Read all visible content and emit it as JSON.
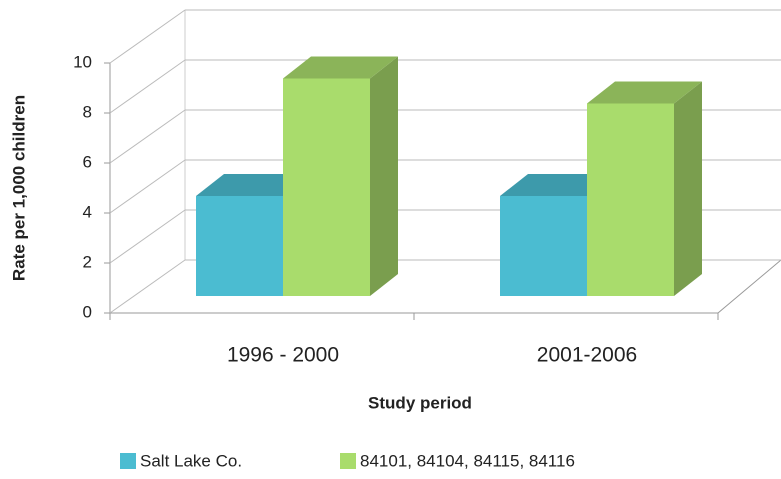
{
  "chart_data": {
    "type": "bar3d",
    "xlabel": "Study period",
    "ylabel": "Rate per 1,000 children",
    "categories": [
      "1996 - 2000",
      "2001-2006"
    ],
    "series": [
      {
        "name": "Salt Lake Co.",
        "color": "#4bbcd1",
        "values": [
          4.0,
          4.0
        ]
      },
      {
        "name": "84101, 84104, 84115, 84116",
        "color": "#a9dc6c",
        "values": [
          8.7,
          7.7
        ]
      }
    ],
    "ylim": [
      0,
      10
    ],
    "yticks": [
      0,
      2,
      4,
      6,
      8,
      10
    ],
    "grid": true,
    "legend": "bottom"
  }
}
